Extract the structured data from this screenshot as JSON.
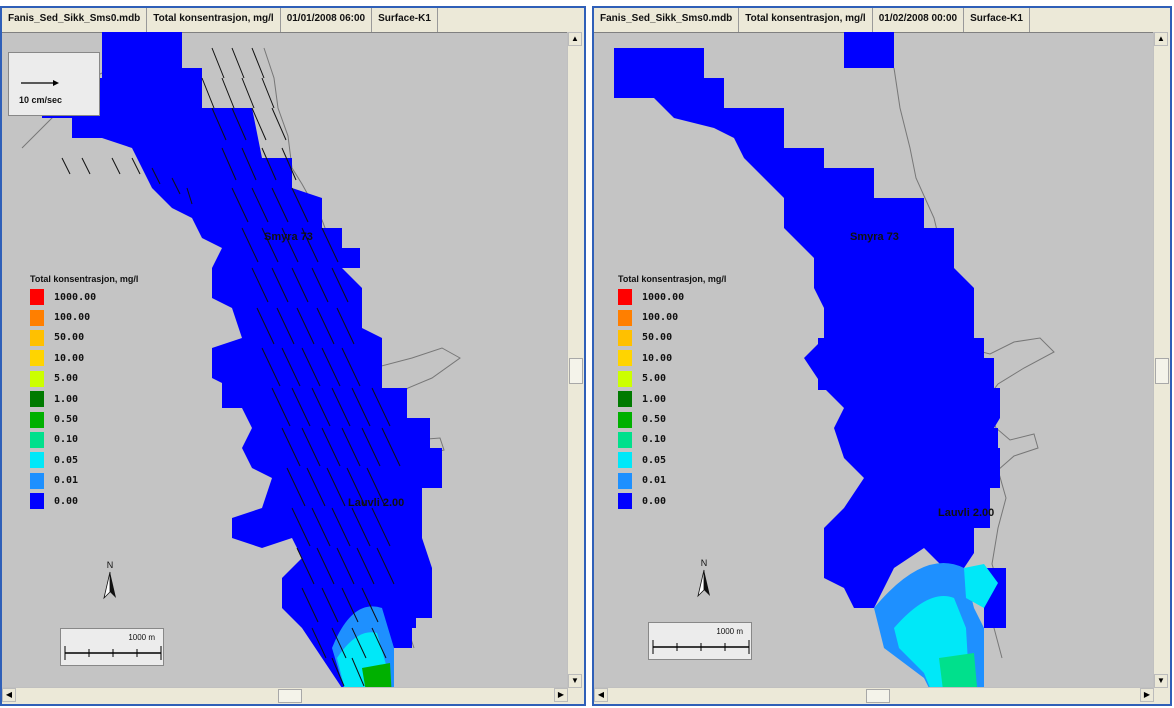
{
  "panels": [
    {
      "id": "left",
      "header": [
        "Fanis_Sed_Sikk_Sms0.mdb",
        "Total konsentrasjon,   mg/l",
        "01/01/2008 06:00",
        "Surface-K1"
      ],
      "vector_label": "10 cm/sec",
      "legend_title": "Total konsentrasjon,    mg/l",
      "legend": [
        {
          "label": "1000.00",
          "color": "#ff0000"
        },
        {
          "label": "100.00",
          "color": "#ff7f00"
        },
        {
          "label": "50.00",
          "color": "#ffc000"
        },
        {
          "label": "10.00",
          "color": "#ffd400"
        },
        {
          "label": "5.00",
          "color": "#ccff00"
        },
        {
          "label": "1.00",
          "color": "#007a00"
        },
        {
          "label": "0.50",
          "color": "#00b000"
        },
        {
          "label": "0.10",
          "color": "#00e08c"
        },
        {
          "label": "0.05",
          "color": "#00e8f8"
        },
        {
          "label": "0.01",
          "color": "#1e90ff"
        },
        {
          "label": "0.00",
          "color": "#0000ff"
        }
      ],
      "north_label": "N",
      "scale_label": "1000 m",
      "place_1": "Smyra 73",
      "place_2": "Lauvli 2.00"
    },
    {
      "id": "right",
      "header": [
        "Fanis_Sed_Sikk_Sms0.mdb",
        "Total konsentrasjon,   mg/l",
        "01/02/2008 00:00",
        "Surface-K1"
      ],
      "legend_title": "Total konsentrasjon,    mg/l",
      "legend": [
        {
          "label": "1000.00",
          "color": "#ff0000"
        },
        {
          "label": "100.00",
          "color": "#ff7f00"
        },
        {
          "label": "50.00",
          "color": "#ffc000"
        },
        {
          "label": "10.00",
          "color": "#ffd400"
        },
        {
          "label": "5.00",
          "color": "#ccff00"
        },
        {
          "label": "1.00",
          "color": "#007a00"
        },
        {
          "label": "0.50",
          "color": "#00b000"
        },
        {
          "label": "0.10",
          "color": "#00e08c"
        },
        {
          "label": "0.05",
          "color": "#00e8f8"
        },
        {
          "label": "0.01",
          "color": "#1e90ff"
        },
        {
          "label": "0.00",
          "color": "#0000ff"
        }
      ],
      "north_label": "N",
      "scale_label": "1000 m",
      "place_1": "Smyra 73",
      "place_2": "Lauvli 2.00"
    }
  ]
}
